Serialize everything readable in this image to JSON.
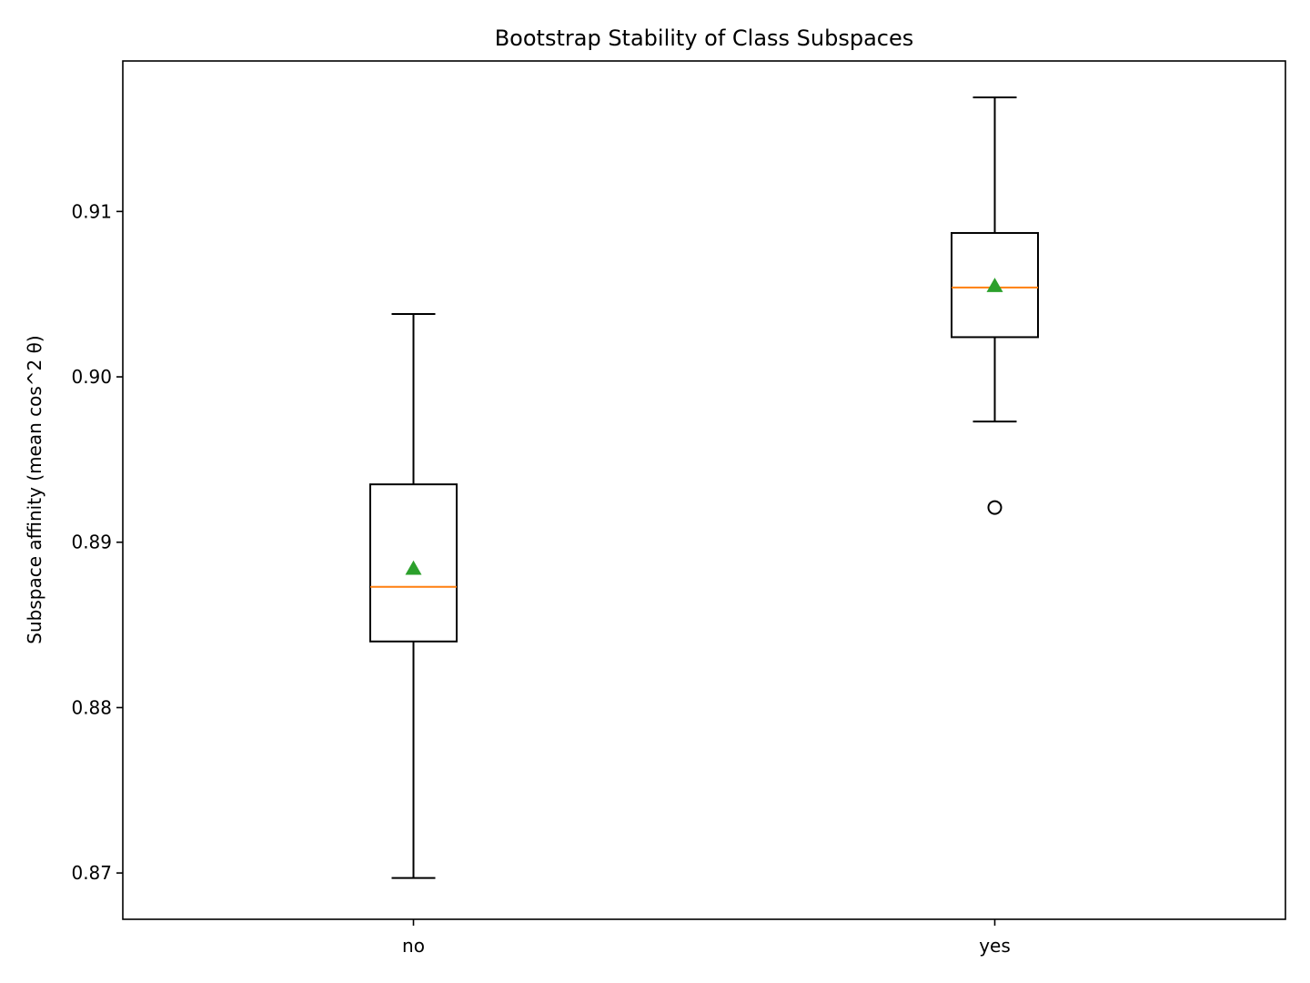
{
  "chart_data": {
    "type": "box",
    "title": "Bootstrap Stability of Class Subspaces",
    "xlabel": "",
    "ylabel": "Subspace affinity (mean cos^2 θ)",
    "categories": [
      "no",
      "yes"
    ],
    "ylim": [
      0.8672,
      0.9191
    ],
    "yticks": [
      0.87,
      0.88,
      0.89,
      0.9,
      0.91
    ],
    "ytick_labels": [
      "0.87",
      "0.88",
      "0.89",
      "0.90",
      "0.91"
    ],
    "show_means": true,
    "grid": false,
    "colors": {
      "box": "#000000",
      "median": "#ff7f0e",
      "mean": "#2ca02c",
      "flier": "#000000"
    },
    "boxes": [
      {
        "category": "no",
        "whislo": 0.8697,
        "q1": 0.884,
        "median": 0.8873,
        "mean": 0.8884,
        "q3": 0.8935,
        "whishi": 0.9038,
        "fliers": []
      },
      {
        "category": "yes",
        "whislo": 0.8973,
        "q1": 0.9024,
        "median": 0.9054,
        "mean": 0.9055,
        "q3": 0.9087,
        "whishi": 0.9169,
        "fliers": [
          0.8921
        ]
      }
    ]
  }
}
